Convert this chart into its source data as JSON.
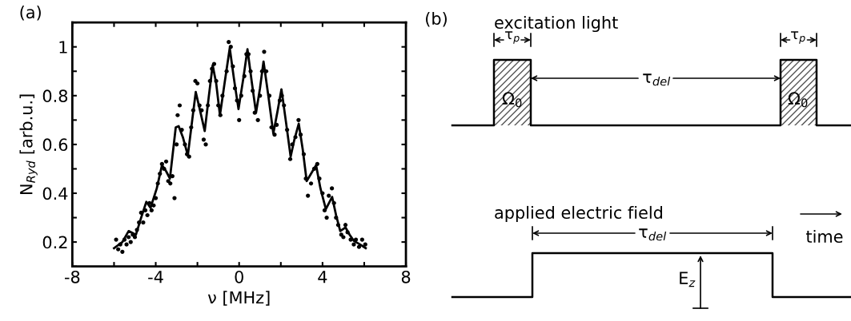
{
  "chart_data": [
    {
      "type": "scatter",
      "title": "(a)",
      "xlabel": "ν [MHz]",
      "ylabel": "N$_{Ryd}$ [arb.u.]",
      "xlim": [
        -8,
        8
      ],
      "ylim": [
        0.1,
        1.1
      ],
      "xticks": [
        -8,
        {
          "value": -6,
          "label": null
        },
        -4,
        {
          "value": -2,
          "label": null
        },
        0,
        {
          "value": 2,
          "label": null
        },
        4,
        {
          "value": 6,
          "label": null
        },
        8
      ],
      "yticks": [
        {
          "value": 0.1,
          "label": null
        },
        0.2,
        {
          "value": 0.3,
          "label": null
        },
        0.4,
        {
          "value": 0.5,
          "label": null
        },
        0.6,
        {
          "value": 0.7,
          "label": null
        },
        0.8,
        {
          "value": 0.9,
          "label": null
        },
        {
          "value": 1,
          "label": "1"
        },
        {
          "value": 1.1,
          "label": null
        }
      ],
      "series": [
        {
          "type": "scatter",
          "color": "#000000",
          "marker": "circle",
          "x": [
            -5.9,
            -5.8,
            -5.7,
            -5.6,
            -5.5,
            -5.4,
            -5.3,
            -5.2,
            -5.1,
            -5.0,
            -4.9,
            -4.8,
            -4.7,
            -4.6,
            -4.5,
            -4.4,
            -4.3,
            -4.2,
            -4.1,
            -4.0,
            -3.9,
            -3.8,
            -3.7,
            -3.6,
            -3.5,
            -3.4,
            -3.3,
            -3.2,
            -3.1,
            -3.0,
            -2.95,
            -2.85,
            -2.75,
            -2.6,
            -2.5,
            -2.4,
            -2.3,
            -2.2,
            -2.1,
            -2.0,
            -1.9,
            -1.8,
            -1.7,
            -1.6,
            -1.5,
            -1.4,
            -1.3,
            -1.2,
            -1.1,
            -1.0,
            -0.9,
            -0.8,
            -0.6,
            -0.5,
            -0.4,
            -0.3,
            -0.2,
            -0.1,
            0.0,
            0.1,
            0.25,
            0.35,
            0.45,
            0.55,
            0.65,
            0.75,
            0.9,
            1.0,
            1.1,
            1.2,
            1.3,
            1.45,
            1.55,
            1.7,
            1.8,
            1.95,
            2.05,
            2.15,
            2.3,
            2.45,
            2.55,
            2.7,
            2.85,
            2.95,
            3.1,
            3.2,
            3.3,
            3.45,
            3.6,
            3.75,
            3.85,
            4.0,
            4.1,
            4.2,
            4.3,
            4.45,
            4.55,
            4.65,
            4.75,
            4.9,
            5.0,
            5.1,
            5.2,
            5.35,
            5.5,
            5.6,
            5.75,
            5.9,
            6.05
          ],
          "values": [
            0.21,
            0.17,
            0.19,
            0.16,
            0.21,
            0.19,
            0.22,
            0.2,
            0.23,
            0.22,
            0.25,
            0.28,
            0.32,
            0.28,
            0.33,
            0.31,
            0.36,
            0.33,
            0.35,
            0.38,
            0.44,
            0.48,
            0.52,
            0.5,
            0.53,
            0.45,
            0.44,
            0.47,
            0.38,
            0.6,
            0.72,
            0.76,
            0.66,
            0.6,
            0.56,
            0.55,
            0.67,
            0.74,
            0.86,
            0.85,
            0.76,
            0.74,
            0.62,
            0.6,
            0.76,
            0.86,
            0.91,
            0.93,
            0.86,
            0.76,
            0.72,
            0.8,
            0.9,
            1.02,
            1.0,
            0.92,
            0.83,
            0.78,
            0.7,
            0.8,
            0.88,
            0.97,
            0.97,
            0.9,
            0.82,
            0.73,
            0.7,
            0.8,
            0.9,
            0.98,
            0.9,
            0.8,
            0.67,
            0.64,
            0.68,
            0.78,
            0.8,
            0.76,
            0.66,
            0.54,
            0.6,
            0.63,
            0.7,
            0.64,
            0.56,
            0.46,
            0.39,
            0.44,
            0.5,
            0.52,
            0.46,
            0.4,
            0.33,
            0.3,
            0.39,
            0.42,
            0.36,
            0.3,
            0.27,
            0.23,
            0.22,
            0.27,
            0.24,
            0.21,
            0.19,
            0.21,
            0.18,
            0.21,
            0.19
          ]
        },
        {
          "type": "line",
          "color": "#000000",
          "marker": "none",
          "line_style": "solid",
          "x": [
            -6.0,
            -5.6,
            -5.3,
            -4.95,
            -4.7,
            -4.45,
            -4.25,
            -3.95,
            -3.7,
            -3.5,
            -3.32,
            -3.04,
            -2.9,
            -2.7,
            -2.46,
            -2.25,
            -2.08,
            -1.85,
            -1.65,
            -1.45,
            -1.27,
            -1.1,
            -0.92,
            -0.7,
            -0.45,
            -0.25,
            -0.03,
            0.2,
            0.4,
            0.6,
            0.81,
            1.0,
            1.17,
            1.4,
            1.64,
            1.85,
            2.03,
            2.25,
            2.47,
            2.65,
            2.86,
            3.05,
            3.24,
            3.45,
            3.69,
            3.9,
            4.16,
            4.46,
            4.65,
            4.85,
            5.1,
            5.3,
            5.5,
            5.8,
            6.07
          ],
          "values": [
            0.175,
            0.2,
            0.245,
            0.23,
            0.3,
            0.365,
            0.34,
            0.42,
            0.515,
            0.49,
            0.46,
            0.67,
            0.675,
            0.63,
            0.555,
            0.7,
            0.815,
            0.73,
            0.655,
            0.8,
            0.925,
            0.85,
            0.72,
            0.85,
            0.995,
            0.87,
            0.745,
            0.87,
            0.99,
            0.86,
            0.73,
            0.83,
            0.94,
            0.8,
            0.645,
            0.74,
            0.826,
            0.69,
            0.55,
            0.62,
            0.685,
            0.58,
            0.45,
            0.48,
            0.515,
            0.42,
            0.335,
            0.385,
            0.31,
            0.245,
            0.26,
            0.23,
            0.205,
            0.19,
            0.175
          ]
        }
      ]
    },
    {
      "type": "other",
      "title": "(b)",
      "annotations": [
        "excitation light",
        "τ$_{p}$",
        "τ$_{p}$",
        "τ$_{del}$",
        "Ω$_{0}$",
        "Ω$_{0}$",
        "applied electric field",
        "time",
        "τ$_{del}$",
        "E$_{z}$"
      ]
    }
  ]
}
